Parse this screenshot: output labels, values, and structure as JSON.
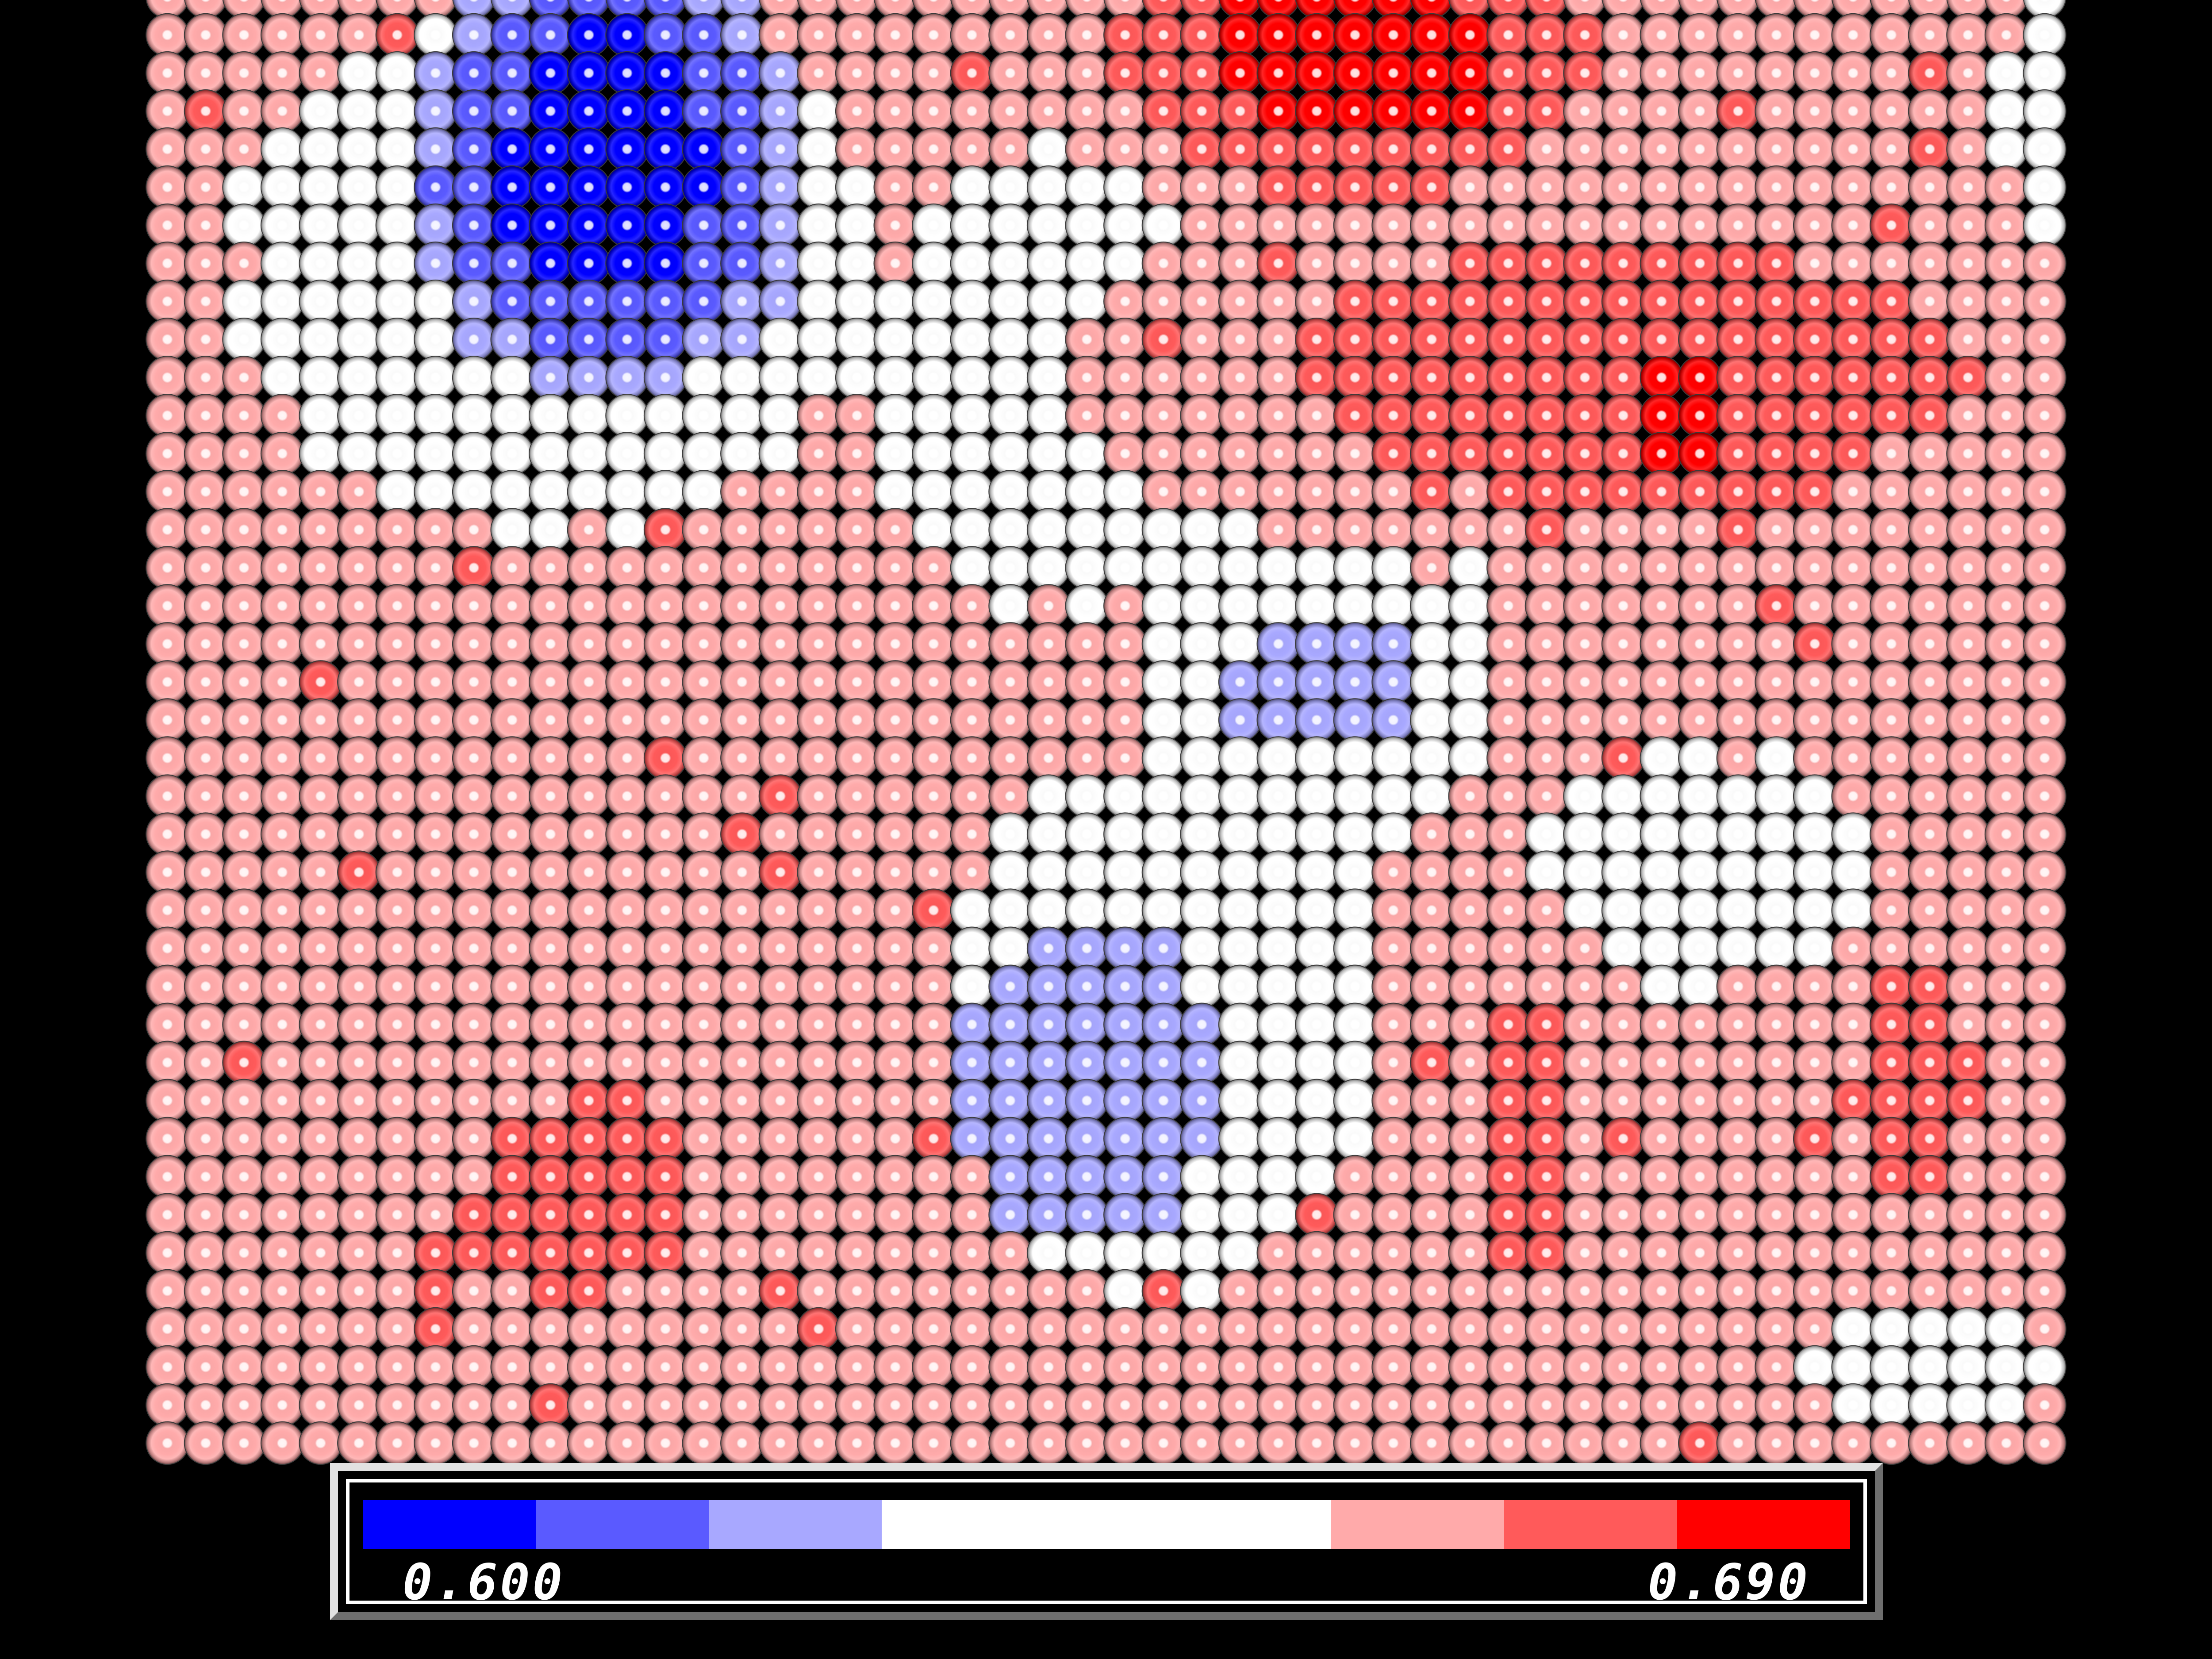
{
  "chart_data": {
    "type": "heatmap",
    "title": "",
    "xlabel": "",
    "ylabel": "",
    "rows": 39,
    "cols": 50,
    "value_range": [
      0.6,
      0.69
    ],
    "legend": {
      "placement": "bottom",
      "min_label": "0.600",
      "max_label": "0.690",
      "bins": [
        {
          "color": "#0000ff",
          "weight": 1
        },
        {
          "color": "#5a5aff",
          "weight": 1
        },
        {
          "color": "#a8a8ff",
          "weight": 1
        },
        {
          "color": "#ffffff",
          "weight": 2.6
        },
        {
          "color": "#ffaaaa",
          "weight": 1
        },
        {
          "color": "#ff5a5a",
          "weight": 1
        },
        {
          "color": "#ff0000",
          "weight": 1
        }
      ]
    },
    "regions": {
      "background_level": 4,
      "cool_blobs": [
        {
          "cx": 11.5,
          "cy": 4.5,
          "rx": 5.5,
          "ry": 6.5,
          "peak": 0
        },
        {
          "cx": 30.0,
          "cy": 18.0,
          "rx": 2.5,
          "ry": 2.0,
          "peak": 2
        },
        {
          "cx": 24.0,
          "cy": 28.5,
          "rx": 3.5,
          "ry": 4.5,
          "peak": 2
        }
      ],
      "white_zones": [
        {
          "cx": 10.0,
          "cy": 7.0,
          "rx": 9.0,
          "ry": 7.5
        },
        {
          "cx": 23.0,
          "cy": 10.0,
          "rx": 5.0,
          "ry": 6.5
        },
        {
          "cx": 30.0,
          "cy": 17.0,
          "rx": 5.0,
          "ry": 6.0
        },
        {
          "cx": 26.0,
          "cy": 27.0,
          "rx": 6.0,
          "ry": 7.5
        },
        {
          "cx": 40.0,
          "cy": 23.0,
          "rx": 4.5,
          "ry": 3.5
        },
        {
          "cx": 51.0,
          "cy": 3.0,
          "rx": 3.5,
          "ry": 5.0
        },
        {
          "cx": 46.0,
          "cy": 36.0,
          "rx": 4.0,
          "ry": 1.5
        }
      ],
      "warm_blobs": [
        {
          "cx": 31.0,
          "cy": 1.5,
          "rx": 6.5,
          "ry": 4.0,
          "peak": 6
        },
        {
          "cx": 38.0,
          "cy": 10.0,
          "rx": 15.0,
          "ry": 5.5,
          "peak": 5
        },
        {
          "cx": 39.5,
          "cy": 11.0,
          "rx": 2.0,
          "ry": 2.0,
          "peak": 6
        },
        {
          "cx": 11.0,
          "cy": 31.5,
          "rx": 4.5,
          "ry": 4.5,
          "peak": 5
        },
        {
          "cx": 35.5,
          "cy": 30.0,
          "rx": 2.0,
          "ry": 6.5,
          "peak": 5
        },
        {
          "cx": 45.5,
          "cy": 28.5,
          "rx": 2.5,
          "ry": 5.5,
          "peak": 5
        }
      ]
    },
    "colors": {
      "background": "#000000"
    }
  }
}
